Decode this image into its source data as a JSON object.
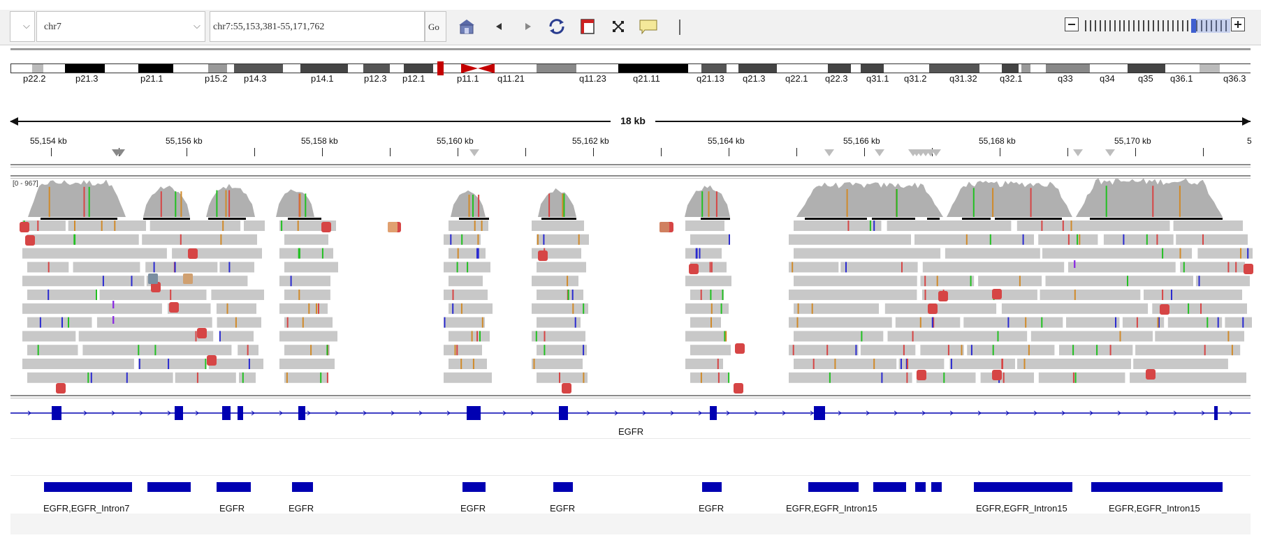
{
  "toolbar": {
    "genome_value": "",
    "chromosome_value": "chr7",
    "locus_value": "chr7:55,153,381-55,171,762",
    "go_label": "Go",
    "icons": [
      "home-icon",
      "back-arrow-icon",
      "forward-arrow-icon",
      "refresh-icon",
      "resize-to-window-icon",
      "select-region-icon",
      "popup-text-icon"
    ],
    "zoom_icons": [
      "zoom-out-icon",
      "zoom-in-icon"
    ],
    "zoom_level_fraction": 0.78
  },
  "ideogram": {
    "bands": [
      "p22.2",
      "p21.3",
      "p21.1",
      "p15.2",
      "p14.3",
      "p14.1",
      "p12.3",
      "p12.1",
      "p11.1",
      "q11.21",
      "q11.23",
      "q21.11",
      "q21.13",
      "q21.3",
      "q22.1",
      "q22.3",
      "q31.1",
      "q31.2",
      "q31.32",
      "q32.1",
      "q33",
      "q34",
      "q35",
      "q36.1",
      "q36.3"
    ]
  },
  "ruler": {
    "span_label": "18 kb",
    "ticks": [
      "55,154 kb",
      "55,156 kb",
      "55,158 kb",
      "55,160 kb",
      "55,162 kb",
      "55,164 kb",
      "55,166 kb",
      "55,168 kb",
      "55,170 kb",
      "5"
    ]
  },
  "coverage": {
    "range_label": "[0 - 967]"
  },
  "gene_track": {
    "gene_name": "EGFR"
  },
  "feature_track": {
    "labels": [
      "EGFR,EGFR_Intron7",
      "EGFR",
      "EGFR",
      "EGFR",
      "EGFR",
      "EGFR",
      "EGFR,EGFR_Intron15",
      "EGFR,EGFR_Intron15",
      "EGFR,EGFR_Intron15"
    ]
  },
  "colors": {
    "coverage_fill": "#b0b0b0",
    "read_fill": "#c8c8c8",
    "gene_blue": "#0000b2",
    "mismatch_red": "#d64545",
    "mismatch_green": "#22c022",
    "mismatch_blue": "#2a2ad0",
    "mismatch_orange": "#d08a2a",
    "insertion_purple": "#8a2be2",
    "centromere_red": "#c40000"
  }
}
